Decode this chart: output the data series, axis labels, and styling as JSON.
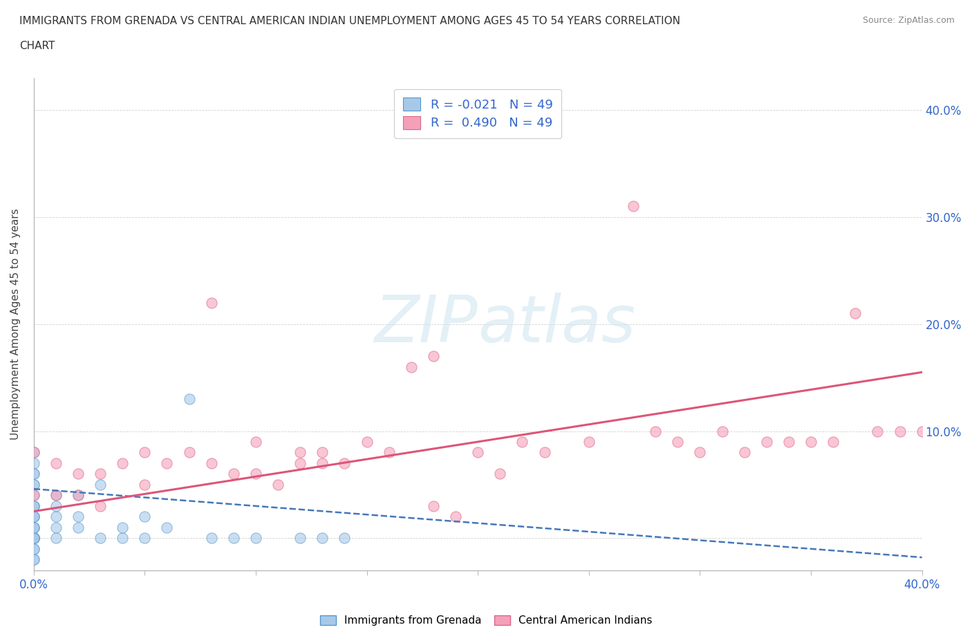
{
  "title_line1": "IMMIGRANTS FROM GRENADA VS CENTRAL AMERICAN INDIAN UNEMPLOYMENT AMONG AGES 45 TO 54 YEARS CORRELATION",
  "title_line2": "CHART",
  "source": "Source: ZipAtlas.com",
  "ylabel": "Unemployment Among Ages 45 to 54 years",
  "xlim": [
    0,
    0.4
  ],
  "ylim": [
    -0.03,
    0.43
  ],
  "color_blue": "#a8c8e8",
  "color_blue_edge": "#5599cc",
  "color_blue_line": "#4477bb",
  "color_pink": "#f4a0b8",
  "color_pink_edge": "#dd6688",
  "color_pink_line": "#dd5577",
  "watermark_color": "#cce4f0",
  "background_color": "#ffffff",
  "grenada_x": [
    0.0,
    0.0,
    0.0,
    0.0,
    0.0,
    0.0,
    0.0,
    0.0,
    0.0,
    0.0,
    0.0,
    0.0,
    0.0,
    0.0,
    0.0,
    0.0,
    0.0,
    0.0,
    0.0,
    0.0,
    0.0,
    0.0,
    0.0,
    0.0,
    0.0,
    0.0,
    0.0,
    0.01,
    0.01,
    0.01,
    0.01,
    0.01,
    0.02,
    0.02,
    0.02,
    0.03,
    0.03,
    0.04,
    0.04,
    0.05,
    0.05,
    0.06,
    0.07,
    0.08,
    0.09,
    0.1,
    0.12,
    0.13,
    0.14
  ],
  "grenada_y": [
    0.05,
    0.06,
    0.07,
    0.08,
    0.06,
    0.05,
    0.04,
    0.03,
    0.02,
    0.01,
    0.0,
    0.0,
    0.0,
    0.0,
    0.01,
    0.02,
    0.03,
    -0.01,
    -0.02,
    -0.02,
    -0.01,
    0.0,
    0.0,
    0.0,
    0.01,
    0.02,
    0.03,
    0.0,
    0.01,
    0.02,
    0.03,
    0.04,
    0.01,
    0.02,
    0.04,
    0.0,
    0.05,
    0.0,
    0.01,
    0.0,
    0.02,
    0.01,
    0.13,
    0.0,
    0.0,
    0.0,
    0.0,
    0.0,
    0.0
  ],
  "central_x": [
    0.0,
    0.0,
    0.01,
    0.01,
    0.02,
    0.02,
    0.03,
    0.03,
    0.04,
    0.05,
    0.05,
    0.06,
    0.07,
    0.08,
    0.08,
    0.09,
    0.1,
    0.1,
    0.11,
    0.12,
    0.12,
    0.13,
    0.13,
    0.14,
    0.15,
    0.16,
    0.17,
    0.18,
    0.2,
    0.21,
    0.22,
    0.23,
    0.25,
    0.27,
    0.28,
    0.29,
    0.3,
    0.31,
    0.32,
    0.33,
    0.34,
    0.35,
    0.36,
    0.37,
    0.38,
    0.39,
    0.4,
    0.18,
    0.19
  ],
  "central_y": [
    0.08,
    0.04,
    0.07,
    0.04,
    0.06,
    0.04,
    0.06,
    0.03,
    0.07,
    0.08,
    0.05,
    0.07,
    0.08,
    0.22,
    0.07,
    0.06,
    0.09,
    0.06,
    0.05,
    0.08,
    0.07,
    0.07,
    0.08,
    0.07,
    0.09,
    0.08,
    0.16,
    0.17,
    0.08,
    0.06,
    0.09,
    0.08,
    0.09,
    0.31,
    0.1,
    0.09,
    0.08,
    0.1,
    0.08,
    0.09,
    0.09,
    0.09,
    0.09,
    0.21,
    0.1,
    0.1,
    0.1,
    0.03,
    0.02
  ],
  "trendline_pink_x0": 0.0,
  "trendline_pink_y0": 0.025,
  "trendline_pink_x1": 0.4,
  "trendline_pink_y1": 0.155,
  "trendline_blue_x0": 0.0,
  "trendline_blue_y0": 0.046,
  "trendline_blue_x1": 0.4,
  "trendline_blue_y1": -0.018
}
